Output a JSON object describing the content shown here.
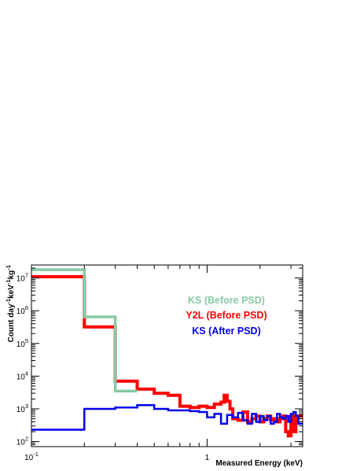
{
  "chart_data": {
    "type": "line",
    "step": true,
    "xlabel": "Measured Energy (keV)",
    "ylabel": {
      "base": "Count day",
      "sup1": "-1",
      "mid": "keV",
      "sup2": "-1",
      "end": "kg",
      "sup3": "-1"
    },
    "xscale": "log",
    "yscale": "log",
    "xlim": [
      0.1,
      3.5
    ],
    "ylim": [
      70,
      25000000
    ],
    "xticks": [
      {
        "value": 0.1,
        "base": "10",
        "exp": "-1"
      },
      {
        "value": 1,
        "base": "1",
        "exp": ""
      }
    ],
    "yticks": [
      {
        "value": 100,
        "base": "10",
        "exp": "2"
      },
      {
        "value": 1000,
        "base": "10",
        "exp": "3"
      },
      {
        "value": 10000,
        "base": "10",
        "exp": "4"
      },
      {
        "value": 100000,
        "base": "10",
        "exp": "5"
      },
      {
        "value": 1000000,
        "base": "10",
        "exp": "6"
      },
      {
        "value": 10000000,
        "base": "10",
        "exp": "7"
      }
    ],
    "grid": false,
    "legend_position": "center-right",
    "series": [
      {
        "name": "KS (Before PSD)",
        "color": "#88c8a3",
        "width": 3.5,
        "edges": [
          0.1,
          0.2,
          0.3,
          0.4
        ],
        "values": [
          18000000,
          650000,
          3500
        ]
      },
      {
        "name": "Y2L (Before PSD)",
        "color": "#ff0000",
        "width": 4,
        "edges": [
          0.1,
          0.2,
          0.3,
          0.4,
          0.5,
          0.6,
          0.7,
          0.8,
          0.9,
          1.0,
          1.1,
          1.2,
          1.25,
          1.3,
          1.35,
          1.4,
          1.45,
          1.5,
          1.6,
          1.7,
          1.8,
          1.9,
          2.0,
          2.1,
          2.2,
          2.3,
          2.4,
          2.5,
          2.6,
          2.7,
          2.8,
          2.9,
          3.0,
          3.1,
          3.2,
          3.3,
          3.5
        ],
        "values": [
          11000000,
          320000,
          7000,
          4000,
          3000,
          2600,
          1200,
          1100,
          1200,
          1100,
          1400,
          1600,
          2600,
          1700,
          1000,
          500,
          500,
          450,
          800,
          400,
          500,
          600,
          400,
          500,
          600,
          450,
          500,
          400,
          500,
          600,
          200,
          150,
          600,
          200,
          500,
          600
        ]
      },
      {
        "name": "KS (After PSD)",
        "color": "#0000ee",
        "width": 2.5,
        "edges": [
          0.1,
          0.2,
          0.3,
          0.4,
          0.5,
          0.6,
          0.7,
          0.8,
          0.9,
          1.0,
          1.1,
          1.2,
          1.3,
          1.4,
          1.5,
          1.6,
          1.7,
          1.8,
          1.9,
          2.0,
          2.1,
          2.2,
          2.3,
          2.4,
          2.5,
          2.6,
          2.7,
          2.8,
          2.9,
          3.0,
          3.1,
          3.2,
          3.3,
          3.5
        ],
        "values": [
          230,
          1000,
          1100,
          1300,
          1000,
          900,
          900,
          850,
          800,
          550,
          700,
          350,
          650,
          550,
          750,
          450,
          350,
          700,
          400,
          600,
          450,
          600,
          350,
          400,
          700,
          550,
          500,
          600,
          400,
          700,
          800,
          600,
          350
        ]
      }
    ]
  }
}
